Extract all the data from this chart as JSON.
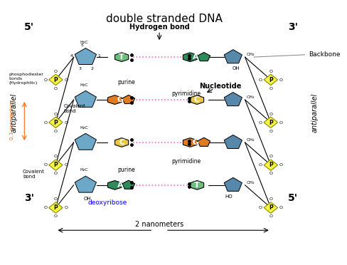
{
  "title": "double stranded DNA",
  "bg_color": "#ffffff",
  "left_strand_label": "antiparallel",
  "right_strand_label": "antiparallel",
  "left_5prime": "5'",
  "left_3prime": "3'",
  "right_3prime": "3'",
  "right_5prime": "5'",
  "hydrogen_bond_label": "Hydrogen bond",
  "backbone_label": "Backbone",
  "nucleotide_label": "Nucleotide",
  "phosphodiester_label": "phosphodiester\nbonds\n(Hydrophilic)",
  "covalent_bond_label1": "Covalent\nbond",
  "covalent_bond_label2": "Covalent\nbond",
  "nanometers_label": "0.3 nanometers",
  "two_nm_label": "2 nanometers",
  "deoxyribose_label": "deoxyribose",
  "purine_label1": "purine",
  "purine_label2": "purine",
  "pyrimidine_label1": "pyrimidine",
  "pyrimidine_label2": "pyrimidine",
  "base_pairs": [
    {
      "left": "T",
      "right": "A",
      "left_color": "#6dbf7e",
      "right_color": "#2e8b57",
      "type": "TA"
    },
    {
      "left": "G",
      "right": "C",
      "left_color": "#e07b20",
      "right_color": "#e8c842",
      "type": "GC"
    },
    {
      "left": "C",
      "right": "G",
      "left_color": "#e8c842",
      "right_color": "#e07b20",
      "type": "CG"
    },
    {
      "left": "A",
      "right": "T",
      "left_color": "#2e8b57",
      "right_color": "#6dbf7e",
      "type": "AT"
    }
  ],
  "sugar_color": "#6ea8c8",
  "phosphate_color": "#f5f542",
  "backbone_sugar_color": "#5588aa",
  "phosphate_border": "#ccaa00"
}
